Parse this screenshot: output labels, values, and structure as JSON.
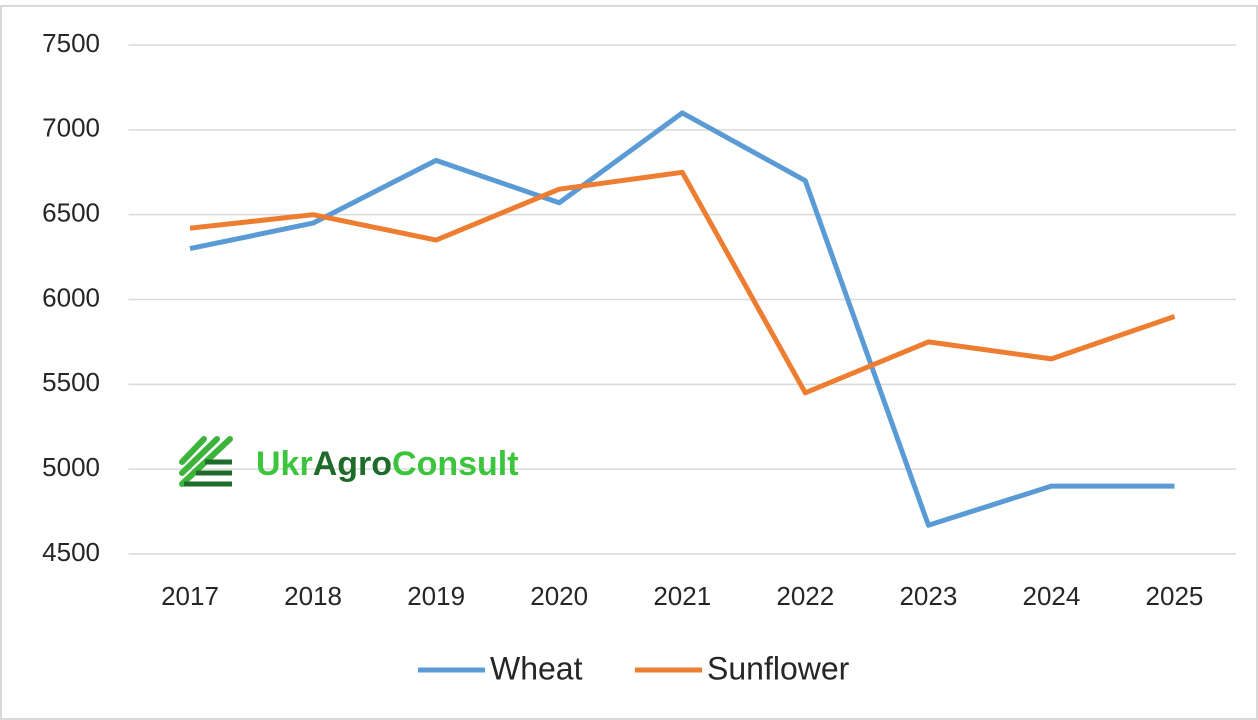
{
  "chart_data": {
    "type": "line",
    "categories": [
      "2017",
      "2018",
      "2019",
      "2020",
      "2021",
      "2022",
      "2023",
      "2024",
      "2025"
    ],
    "series": [
      {
        "name": "Wheat",
        "color": "#5b9bd5",
        "values": [
          6300,
          6450,
          6820,
          6570,
          7100,
          6700,
          4670,
          4900,
          4900
        ]
      },
      {
        "name": "Sunflower",
        "color": "#ed7d31",
        "values": [
          6420,
          6500,
          6350,
          6650,
          6750,
          5450,
          5750,
          5650,
          5900
        ]
      }
    ],
    "ylim": [
      4500,
      7500
    ],
    "yticks": [
      4500,
      5000,
      5500,
      6000,
      6500,
      7000,
      7500
    ],
    "grid": true,
    "legend": "bottom",
    "logo": [
      "Ukr",
      "Agro",
      "Consult"
    ]
  }
}
